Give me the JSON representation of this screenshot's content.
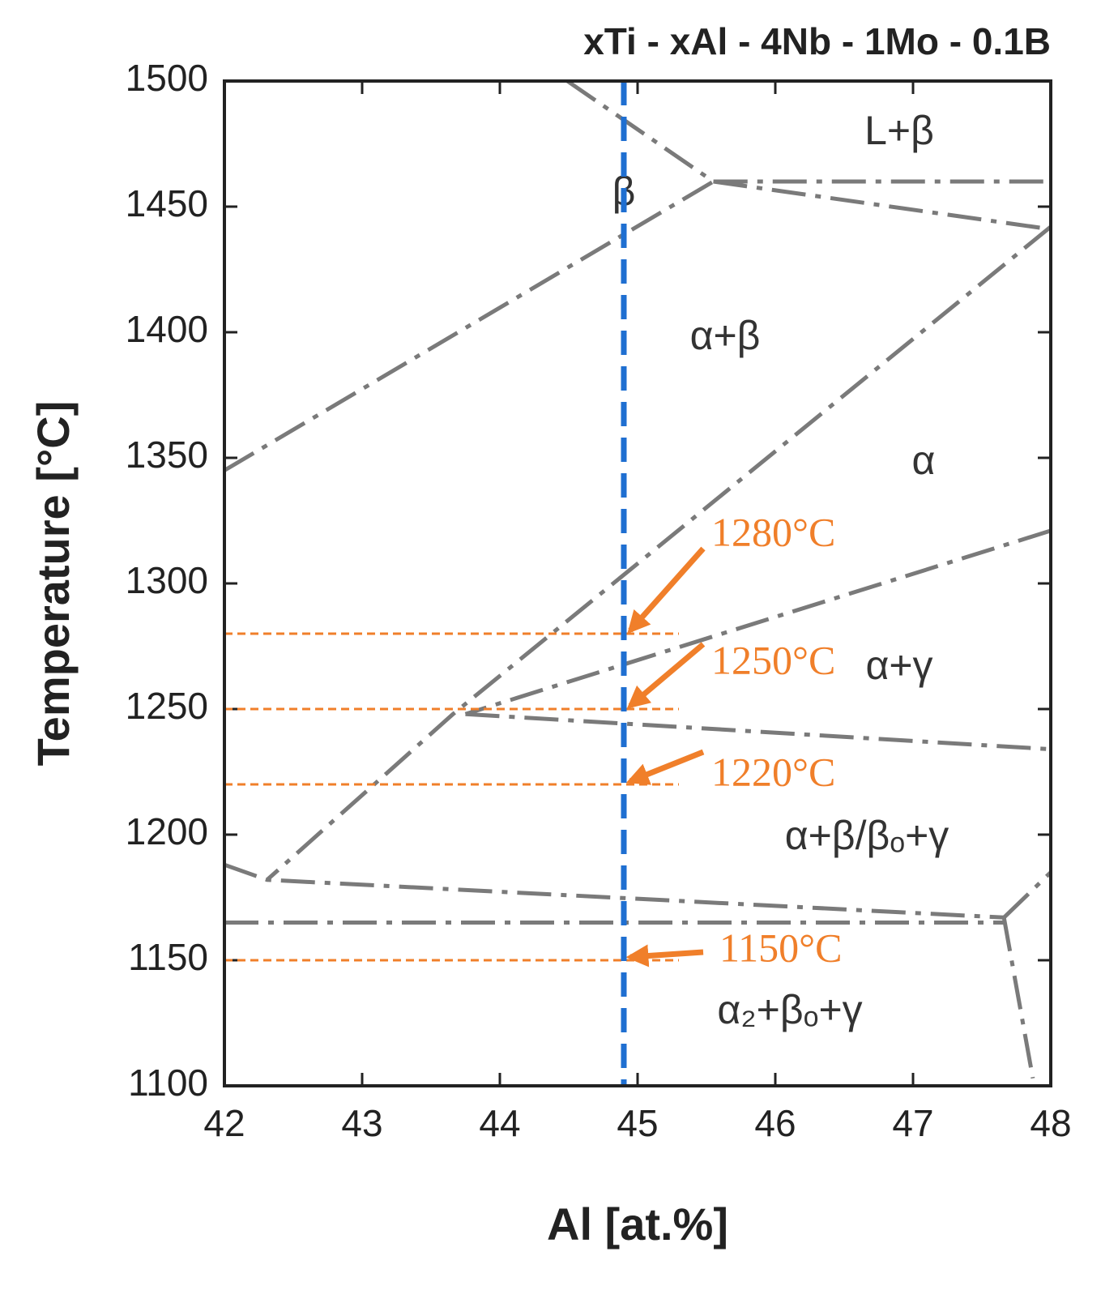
{
  "chart_data": {
    "type": "line",
    "title": "xTi - xAl - 4Nb - 1Mo - 0.1B",
    "x_label": "Al [at.%]",
    "y_label": "Temperature [°C]",
    "xlim": [
      42,
      48
    ],
    "ylim": [
      1100,
      1500
    ],
    "xticks": [
      42,
      43,
      44,
      45,
      46,
      47,
      48
    ],
    "yticks": [
      1100,
      1150,
      1200,
      1250,
      1300,
      1350,
      1400,
      1450,
      1500
    ],
    "boundaries": [
      {
        "x": [
          44.49,
          45.55,
          48
        ],
        "y": [
          1500,
          1460,
          1460
        ]
      },
      {
        "x": [
          45.55,
          48
        ],
        "y": [
          1460,
          1441
        ]
      },
      {
        "x": [
          42,
          45.55
        ],
        "y": [
          1345,
          1460
        ]
      },
      {
        "x": [
          48,
          43.66,
          42.31
        ],
        "y": [
          1442,
          1248,
          1182
        ]
      },
      {
        "x": [
          48,
          43.75
        ],
        "y": [
          1321,
          1248
        ]
      },
      {
        "x": [
          43.75,
          48
        ],
        "y": [
          1248,
          1234
        ]
      },
      {
        "x": [
          42,
          42.31,
          47.66
        ],
        "y": [
          1188,
          1182,
          1167
        ]
      },
      {
        "x": [
          42,
          47.66
        ],
        "y": [
          1165,
          1165
        ]
      },
      {
        "x": [
          47.66,
          48
        ],
        "y": [
          1167,
          1185
        ]
      },
      {
        "x": [
          47.66,
          47.87
        ],
        "y": [
          1167,
          1103
        ]
      }
    ],
    "boundary_color": "#7a7a7a",
    "composition_line": {
      "x": 44.9,
      "color": "#1f6fd1"
    },
    "temperature_lines": {
      "color": "#f07f2a",
      "x_range": [
        42,
        45.3
      ],
      "values": [
        1280,
        1250,
        1220,
        1150
      ],
      "value_labels": [
        "1280°C",
        "1250°C",
        "1220°C",
        "1150°C"
      ]
    },
    "regions": [
      "L+β",
      "β",
      "α+β",
      "α",
      "α+γ",
      "α+β/βₒ+γ",
      "α₂+βₒ+γ"
    ]
  }
}
